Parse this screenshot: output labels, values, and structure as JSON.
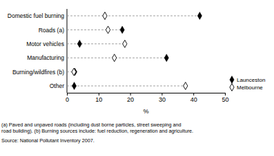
{
  "chart_data": {
    "type": "dot",
    "categories": [
      "Domestic fuel burning",
      "Roads (a)",
      "Motor vehicles",
      "Manufacturing",
      "Burning/wildfires (b)",
      "Other"
    ],
    "series": [
      {
        "name": "Launceston",
        "color": "#000000",
        "marker": "diamond",
        "values": [
          42,
          17.5,
          4,
          31.5,
          2.5,
          2.3
        ]
      },
      {
        "name": "Melbourne",
        "color": "#ffffff",
        "marker": "open-diamond",
        "values": [
          12,
          13,
          18.3,
          15,
          2.2,
          37.5
        ]
      }
    ],
    "orientation": "horizontal",
    "x_label": "%",
    "xlim": [
      0,
      50
    ],
    "xticks": [
      0,
      10,
      20,
      30,
      40,
      50
    ],
    "legend": "lower right",
    "notes": [
      "(a) Paved and unpaved roads (including dust borne particles, street sweeping and",
      "road building). (b) Burning sources include: fuel reduction, regeneration and agriculture."
    ],
    "source": "Source: National Pollutant Inventory 2007."
  }
}
